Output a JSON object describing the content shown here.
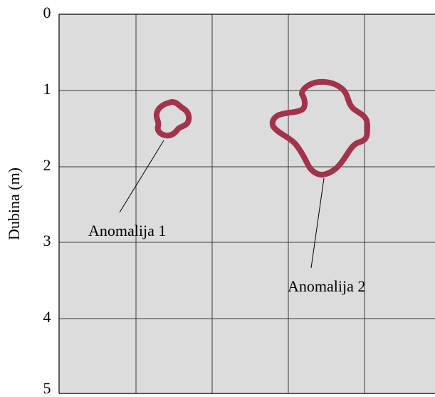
{
  "colors": {
    "panel_background": "#dcdcdc",
    "anomaly_outline": "#a3334a"
  },
  "axis": {
    "y_label": "Dubina (m)",
    "y_ticks": [
      "0",
      "1",
      "2",
      "3",
      "4",
      "5"
    ]
  },
  "anomalies": [
    {
      "label": "Anomalija 1"
    },
    {
      "label": "Anomalija 2"
    }
  ]
}
